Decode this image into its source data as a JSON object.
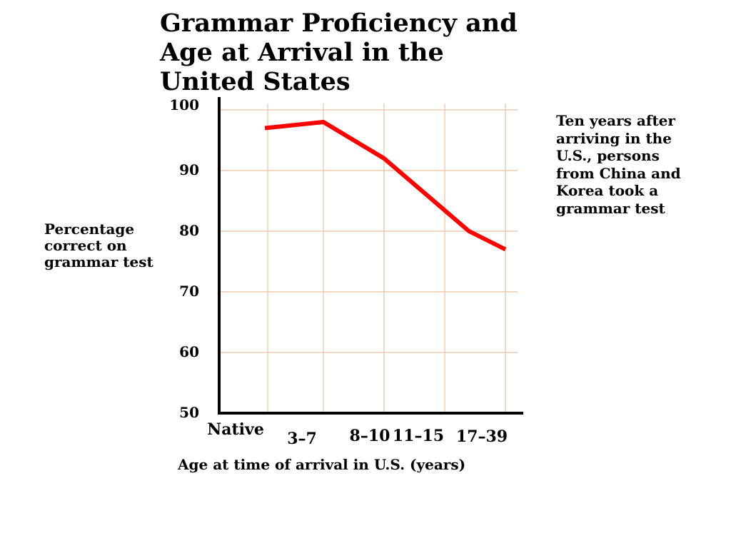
{
  "chart_data": {
    "type": "line",
    "title": "Grammar Proficiency and Age at Arrival in the United States",
    "ylabel": "Percentage correct on grammar test",
    "xlabel": "Age at time of arrival in U.S. (years)",
    "annotation": "Ten years after arriving in the U.S., persons from China and Korea took a grammar test",
    "categories": [
      "Native",
      "3–7",
      "8–10",
      "11–15",
      "17–39"
    ],
    "x": [
      0,
      3,
      8,
      11,
      17,
      39
    ],
    "series": [
      {
        "values": [
          97,
          98,
          92,
          80,
          77
        ],
        "x": [
          0,
          3,
          8,
          15,
          17
        ],
        "color": "#ff0000"
      }
    ],
    "yticks": [
      100,
      90,
      80,
      70,
      60,
      50
    ],
    "ylim": [
      50,
      100
    ],
    "grid": true,
    "grid_color": "#e8c0a0",
    "line_color": "#ff0000"
  }
}
